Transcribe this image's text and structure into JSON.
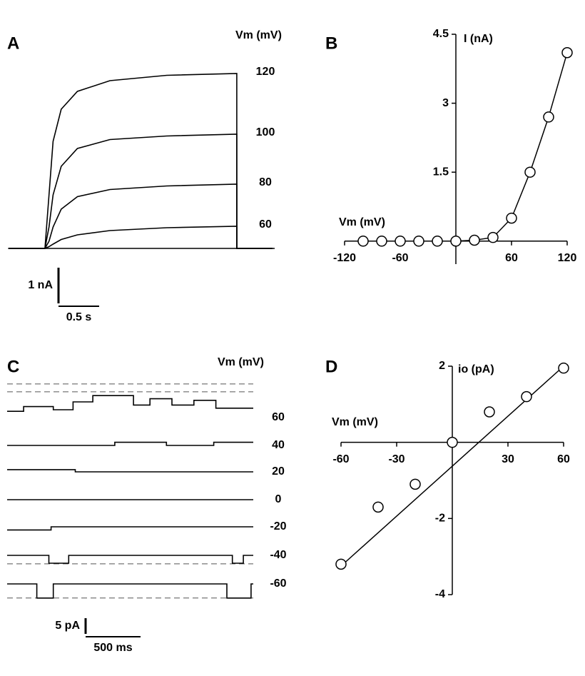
{
  "chart_data": [
    {
      "type": "line",
      "title": "A",
      "axis_label": "Vm (mV)",
      "x": [
        -0.45,
        0,
        0.05,
        0.1,
        0.2,
        0.4,
        0.8,
        1.5,
        2.36,
        2.36,
        2.8
      ],
      "xlim": [
        -0.45,
        2.8
      ],
      "ylim": [
        -0.1,
        5.3
      ],
      "series": [
        {
          "name": "120",
          "color": "#000000",
          "values": [
            0,
            0,
            1.5,
            3.0,
            3.9,
            4.4,
            4.7,
            4.85,
            4.9,
            0,
            0
          ]
        },
        {
          "name": "100",
          "color": "#000000",
          "values": [
            0,
            0,
            0.6,
            1.5,
            2.3,
            2.8,
            3.05,
            3.15,
            3.2,
            0,
            0
          ]
        },
        {
          "name": "80",
          "color": "#000000",
          "values": [
            0,
            0,
            0.2,
            0.6,
            1.1,
            1.45,
            1.65,
            1.75,
            1.8,
            0,
            0
          ]
        },
        {
          "name": "60",
          "color": "#000000",
          "values": [
            0,
            0,
            0.05,
            0.12,
            0.25,
            0.38,
            0.5,
            0.58,
            0.62,
            0,
            0
          ]
        }
      ],
      "scale_bars": {
        "y": {
          "value": 1,
          "label": "1 nA"
        },
        "x": {
          "value": 0.5,
          "label": "0.5 s"
        }
      }
    },
    {
      "type": "line",
      "title": "B",
      "xlabel": "Vm (mV)",
      "ylabel": "I (nA)",
      "markers": true,
      "x": [
        -100,
        -80,
        -60,
        -40,
        -20,
        0,
        20,
        40,
        60,
        80,
        100,
        120
      ],
      "values": [
        0,
        0,
        0,
        0,
        0,
        0,
        0.02,
        0.08,
        0.5,
        1.5,
        2.7,
        4.1
      ],
      "color": "#000000",
      "xlim": [
        -120,
        120
      ],
      "ylim": [
        -0.5,
        4.5
      ],
      "xticks": [
        -120,
        -60,
        60,
        120
      ],
      "yticks": [
        1.5,
        3,
        4.5
      ]
    },
    {
      "type": "line",
      "title": "C",
      "axis_label": "Vm (mV)",
      "xlim": [
        0,
        2240
      ],
      "series": [
        {
          "name": "60",
          "color": "#000000",
          "x": [
            0,
            150,
            150,
            420,
            420,
            600,
            600,
            780,
            780,
            1150,
            1150,
            1300,
            1300,
            1500,
            1500,
            1700,
            1700,
            1900,
            1900,
            2240
          ],
          "values": [
            2,
            2,
            3.5,
            3.5,
            2.5,
            2.5,
            5,
            5,
            7,
            7,
            4,
            4,
            6,
            6,
            4,
            4,
            5.5,
            5.5,
            3,
            3
          ],
          "levels": [
            8.2,
            10.7
          ]
        },
        {
          "name": "40",
          "color": "#000000",
          "x": [
            0,
            980,
            980,
            1450,
            1450,
            1880,
            1880,
            2240
          ],
          "values": [
            0,
            0,
            1,
            1,
            0,
            0,
            1,
            1
          ]
        },
        {
          "name": "20",
          "color": "#000000",
          "x": [
            0,
            620,
            620,
            2240
          ],
          "values": [
            0.7,
            0.7,
            0,
            0
          ]
        },
        {
          "name": "0",
          "color": "#000000",
          "x": [
            0,
            2240
          ],
          "values": [
            0,
            0
          ]
        },
        {
          "name": "-20",
          "color": "#000000",
          "x": [
            0,
            400,
            400,
            2240
          ],
          "values": [
            -1,
            -1,
            0,
            0
          ]
        },
        {
          "name": "-40",
          "color": "#000000",
          "x": [
            0,
            380,
            380,
            560,
            560,
            2050,
            2050,
            2150,
            2150,
            2240
          ],
          "values": [
            0,
            0,
            -2.5,
            -2.5,
            0,
            0,
            -2.5,
            -2.5,
            0,
            0
          ],
          "levels": [
            -2.7
          ]
        },
        {
          "name": "-60",
          "color": "#000000",
          "x": [
            0,
            270,
            270,
            420,
            420,
            2000,
            2000,
            2220,
            2220,
            2240
          ],
          "values": [
            0,
            0,
            -4.5,
            -4.5,
            0,
            0,
            -4.5,
            -4.5,
            0,
            0
          ],
          "levels": [
            -4.5
          ]
        }
      ],
      "scale_bars": {
        "y": {
          "value": 5,
          "label": "5 pA"
        },
        "x": {
          "value": 500,
          "label": "500 ms"
        }
      }
    },
    {
      "type": "scatter",
      "title": "D",
      "xlabel": "Vm (mV)",
      "ylabel": "io (pA)",
      "x": [
        -60,
        -40,
        -20,
        0,
        20,
        40,
        60
      ],
      "values": [
        -3.2,
        -1.7,
        -1.1,
        0,
        0.8,
        1.2,
        1.95
      ],
      "color": "#000000",
      "fit": {
        "x": [
          -60,
          60
        ],
        "values": [
          -3.25,
          2.0
        ]
      },
      "xlim": [
        -60,
        60
      ],
      "ylim": [
        -4,
        2
      ],
      "xticks": [
        -60,
        -30,
        30,
        60
      ],
      "yticks": [
        -4,
        -2,
        2
      ]
    }
  ]
}
